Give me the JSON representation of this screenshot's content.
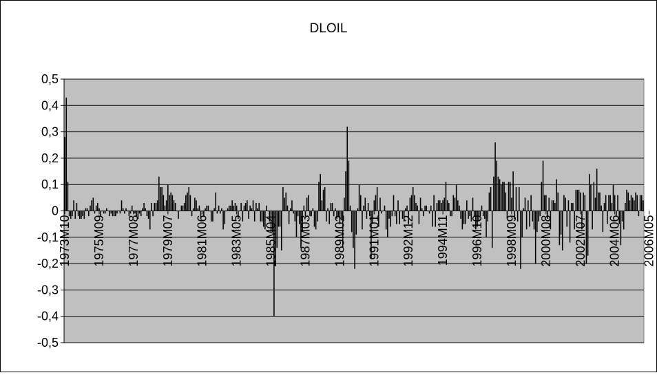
{
  "chart_data": {
    "type": "bar",
    "title": "DLOIL",
    "xlabel": "",
    "ylabel": "",
    "ylim": [
      -0.5,
      0.5
    ],
    "y_ticks": [
      "0,5",
      "0,4",
      "0,3",
      "0,2",
      "0,1",
      "0",
      "-0,1",
      "-0,2",
      "-0,3",
      "-0,4",
      "-0,5"
    ],
    "y_tick_values": [
      0.5,
      0.4,
      0.3,
      0.2,
      0.1,
      0,
      -0.1,
      -0.2,
      -0.3,
      -0.4,
      -0.5
    ],
    "x_tick_labels": [
      "1973M10",
      "1975M09",
      "1977M08",
      "1979M07",
      "1981M06",
      "1983M05",
      "1985M04",
      "1987M03",
      "1989M02",
      "1991M01",
      "1992M12",
      "1994M11",
      "1996M10",
      "1998M09",
      "2000M08",
      "2002M07",
      "2004M06",
      "2006M05"
    ],
    "x_tick_interval_months": 23,
    "grid": true,
    "plot_background": "#c0c0c0",
    "bar_color": "#000000",
    "series": [
      {
        "values": [
          0.28,
          0.43,
          0.11,
          -0.02,
          -0.03,
          -0.02,
          0.04,
          -0.03,
          0.03,
          -0.02,
          -0.03,
          -0.03,
          -0.02,
          -0.03,
          0.01,
          0.01,
          -0.02,
          0.02,
          0.04,
          0.05,
          -0.01,
          0.02,
          0.03,
          0.01,
          -0.02,
          0.0,
          -0.01,
          -0.01,
          0.01,
          0.0,
          -0.02,
          -0.01,
          -0.02,
          -0.02,
          -0.02,
          -0.01,
          0.0,
          -0.01,
          0.04,
          0.01,
          -0.01,
          0.01,
          0.0,
          -0.02,
          -0.01,
          0.02,
          -0.01,
          -0.01,
          -0.02,
          -0.03,
          -0.01,
          -0.02,
          0.01,
          0.03,
          0.01,
          -0.02,
          -0.03,
          -0.07,
          0.03,
          -0.02,
          0.03,
          0.03,
          0.04,
          0.13,
          0.09,
          0.09,
          0.06,
          0.02,
          0.04,
          0.1,
          0.06,
          0.07,
          0.06,
          0.04,
          0.03,
          0.0,
          -0.03,
          0.0,
          0.02,
          0.02,
          0.03,
          0.06,
          0.07,
          0.09,
          0.06,
          -0.02,
          0.01,
          0.05,
          0.04,
          0.01,
          0.02,
          -0.03,
          0.0,
          -0.02,
          0.01,
          0.02,
          0.02,
          0.0,
          -0.04,
          -0.04,
          0.01,
          0.07,
          -0.01,
          0.02,
          -0.01,
          0.01,
          -0.07,
          -0.05,
          0.0,
          0.01,
          0.02,
          0.02,
          0.04,
          0.02,
          0.03,
          0.02,
          -0.03,
          0.0,
          0.03,
          -0.04,
          0.02,
          0.03,
          0.04,
          -0.03,
          0.02,
          0.01,
          0.04,
          -0.04,
          0.03,
          0.01,
          0.03,
          -0.04,
          -0.04,
          -0.06,
          -0.07,
          0.02,
          0.0,
          -0.04,
          -0.08,
          -0.08,
          -0.4,
          -0.21,
          -0.14,
          -0.06,
          -0.06,
          -0.15,
          0.09,
          0.05,
          0.07,
          0.02,
          -0.05,
          0.01,
          0.04,
          -0.01,
          -0.04,
          -0.1,
          -0.02,
          -0.05,
          -0.14,
          -0.08,
          0.02,
          -0.02,
          0.05,
          0.06,
          -0.02,
          -0.02,
          0.01,
          -0.06,
          -0.07,
          -0.04,
          0.11,
          0.14,
          0.04,
          0.08,
          0.09,
          -0.04,
          0.01,
          -0.05,
          0.03,
          0.03,
          -0.02,
          0.01,
          -0.03,
          -0.02,
          -0.05,
          -0.03,
          -0.14,
          0.05,
          0.15,
          0.32,
          0.19,
          0.02,
          -0.08,
          -0.14,
          -0.22,
          -0.09,
          0.01,
          0.1,
          0.06,
          -0.07,
          0.02,
          0.05,
          -0.03,
          0.03,
          -0.02,
          -0.18,
          -0.05,
          0.04,
          0.06,
          0.09,
          -0.06,
          0.05,
          -0.01,
          0.0,
          0.02,
          -0.07,
          -0.1,
          -0.03,
          -0.06,
          -0.02,
          0.06,
          -0.02,
          -0.05,
          0.04,
          -0.05,
          0.0,
          -0.03,
          -0.04,
          0.01,
          0.02,
          -0.05,
          0.05,
          0.06,
          0.09,
          0.06,
          0.03,
          0.02,
          -0.05,
          0.05,
          0.01,
          -0.02,
          0.02,
          0.02,
          0.0,
          -0.01,
          0.02,
          -0.06,
          0.06,
          -0.06,
          0.03,
          0.04,
          0.04,
          0.03,
          0.04,
          0.05,
          0.11,
          0.04,
          0.03,
          -0.02,
          -0.02,
          0.06,
          0.05,
          0.1,
          0.04,
          0.02,
          -0.03,
          -0.07,
          -0.05,
          -0.05,
          0.04,
          -0.03,
          -0.02,
          -0.04,
          0.05,
          -0.02,
          -0.07,
          -0.06,
          -0.04,
          -0.02,
          0.02,
          -0.02,
          -0.03,
          -0.1,
          -0.04,
          0.07,
          0.09,
          -0.14,
          0.13,
          0.26,
          0.19,
          0.13,
          0.12,
          0.1,
          0.11,
          0.11,
          0.07,
          -0.03,
          0.11,
          0.11,
          0.05,
          0.15,
          -0.03,
          0.09,
          -0.04,
          0.09,
          -0.22,
          -0.1,
          0.01,
          0.05,
          -0.07,
          0.04,
          -0.06,
          0.06,
          -0.04,
          -0.07,
          -0.2,
          -0.08,
          -0.04,
          -0.02,
          0.11,
          0.19,
          0.06,
          0.06,
          -0.03,
          0.05,
          -0.07,
          0.04,
          0.04,
          0.03,
          0.12,
          0.07,
          -0.13,
          -0.09,
          -0.15,
          0.06,
          0.05,
          -0.06,
          0.04,
          -0.12,
          0.03,
          0.03,
          -0.07,
          0.08,
          0.08,
          0.08,
          0.07,
          -0.07,
          0.07,
          0.06,
          -0.2,
          -0.17,
          0.14,
          0.1,
          -0.07,
          0.11,
          0.05,
          0.16,
          0.07,
          0.07,
          0.02,
          -0.08,
          0.03,
          0.06,
          -0.05,
          0.06,
          0.06,
          0.03,
          0.1,
          0.06,
          -0.02,
          0.06,
          -0.05,
          -0.13,
          -0.04,
          -0.07,
          0.03,
          0.08,
          0.07,
          0.04,
          0.06,
          0.05,
          0.04,
          0.07,
          0.06,
          -0.02,
          0.06,
          0.06,
          0.04
        ]
      }
    ]
  }
}
